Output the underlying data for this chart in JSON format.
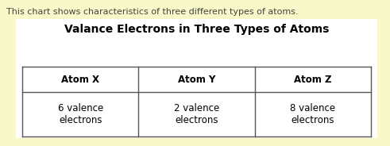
{
  "background_color": "#f8f8c8",
  "intro_text": "This chart shows characteristics of three different types of atoms.",
  "title": "Valance Electrons in Three Types of Atoms",
  "table_bg": "#ffffff",
  "headers": [
    "Atom X",
    "Atom Y",
    "Atom Z"
  ],
  "values": [
    "6 valence\nelectrons",
    "2 valence\nelectrons",
    "8 valence\nelectrons"
  ],
  "header_fontsize": 8.5,
  "value_fontsize": 8.5,
  "title_fontsize": 10,
  "intro_fontsize": 8,
  "intro_text_color": "#444444",
  "line_color": "#555555"
}
